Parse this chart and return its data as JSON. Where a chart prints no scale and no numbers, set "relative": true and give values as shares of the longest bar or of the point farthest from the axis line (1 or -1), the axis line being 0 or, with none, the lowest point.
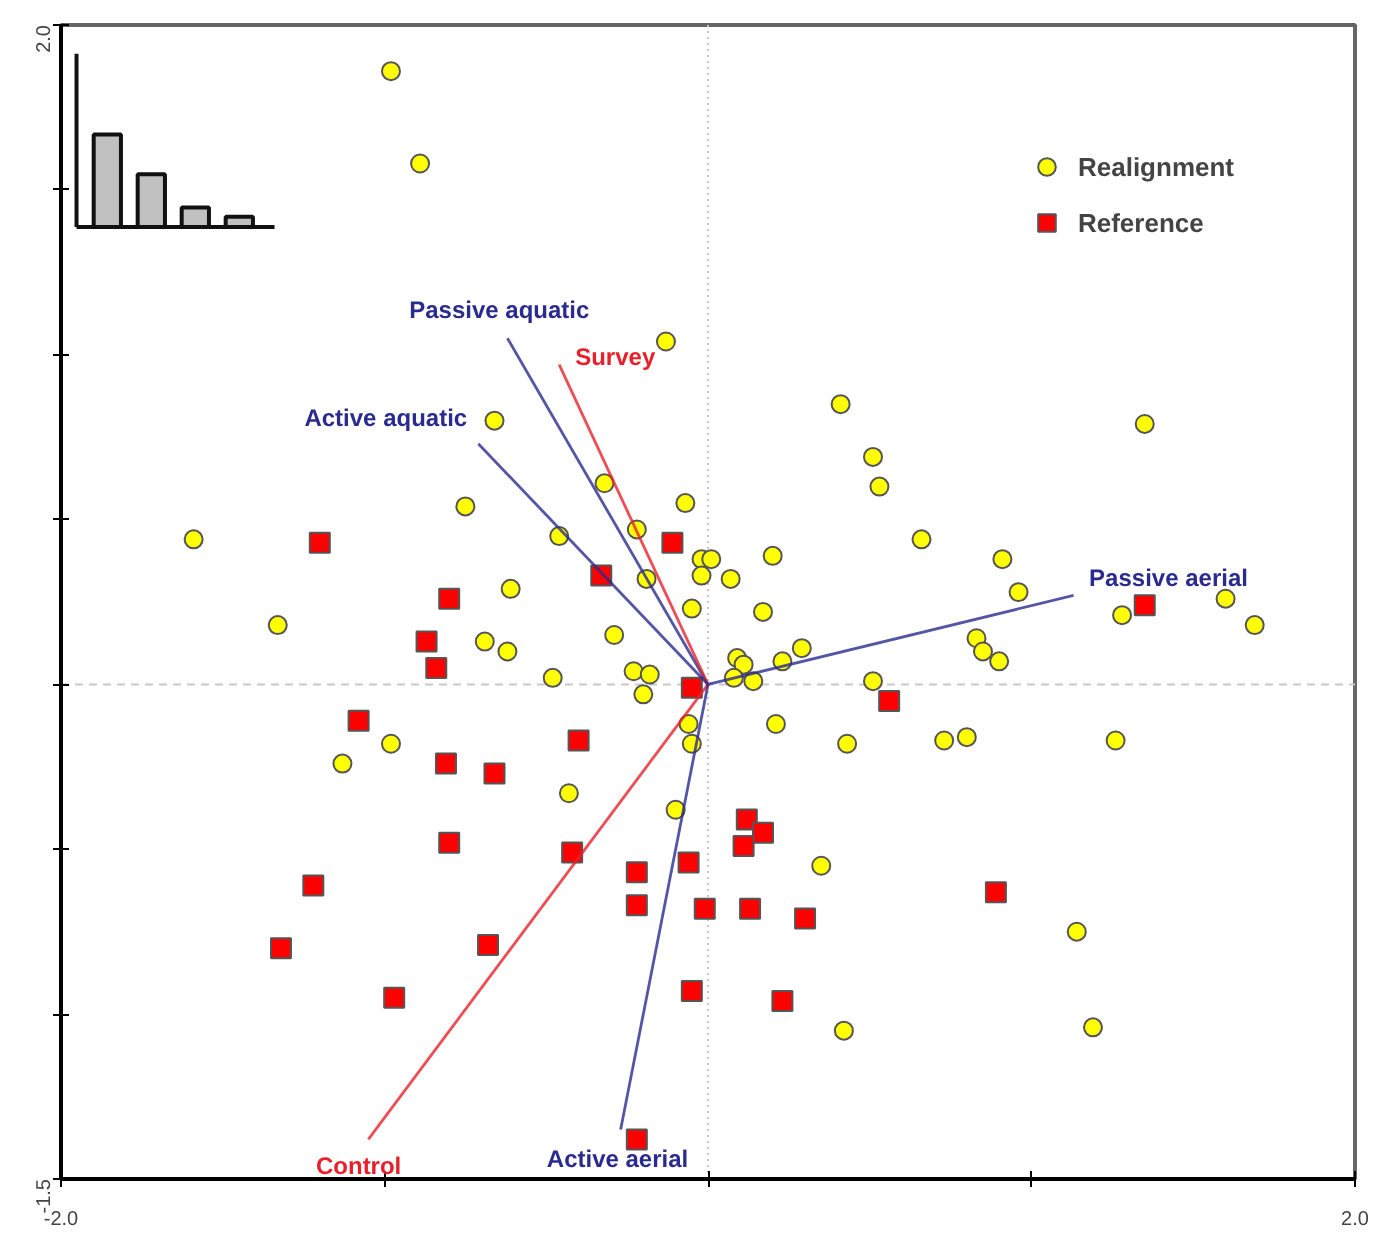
{
  "chart_data": [
    {
      "type": "scatter",
      "xlim": [
        -2.0,
        2.0
      ],
      "ylim": [
        -1.5,
        2.0
      ],
      "xticks": [
        {
          "value": -2.0,
          "label": "-2.0"
        },
        {
          "value": -1.0,
          "label": null
        },
        {
          "value": 0.0,
          "label": null
        },
        {
          "value": 1.0,
          "label": null
        },
        {
          "value": 2.0,
          "label": "2.0"
        }
      ],
      "yticks": [
        {
          "value": -1.5,
          "label": "-1.5"
        },
        {
          "value": -1.0,
          "label": null
        },
        {
          "value": -0.5,
          "label": null
        },
        {
          "value": 0.0,
          "label": null
        },
        {
          "value": 0.5,
          "label": null
        },
        {
          "value": 1.0,
          "label": null
        },
        {
          "value": 1.5,
          "label": null
        },
        {
          "value": 2.0,
          "label": "2.0"
        }
      ],
      "grid": false,
      "legend": "top right",
      "ref_lines": [
        {
          "axis": "x",
          "value": 0,
          "color": "#c8c8c8",
          "line_style": "dotted"
        },
        {
          "axis": "y",
          "value": 0,
          "color": "#c8c8c8",
          "line_style": "dashed"
        }
      ],
      "series": [
        {
          "name": "Realignment",
          "type": "scatter",
          "marker": "circle",
          "color": "#ffff00",
          "x": [
            -0.98,
            -0.89,
            -0.13,
            -0.66,
            -1.59,
            -0.75,
            -0.32,
            -0.22,
            -0.07,
            -0.46,
            -0.02,
            0.01,
            -0.02,
            -0.61,
            -1.33,
            -0.69,
            -0.62,
            -0.29,
            -0.19,
            -0.05,
            0.07,
            0.2,
            0.17,
            -0.48,
            -0.23,
            -0.18,
            -0.2,
            -0.06,
            -0.05,
            -1.13,
            -0.98,
            -0.43,
            -0.1,
            0.35,
            0.42,
            0.41,
            0.51,
            0.53,
            0.66,
            0.91,
            0.96,
            1.35,
            1.6,
            1.69,
            1.28,
            0.83,
            0.85,
            0.9,
            0.51,
            0.23,
            0.29,
            0.09,
            0.11,
            0.08,
            0.14,
            0.21,
            0.43,
            0.73,
            0.8,
            1.26,
            1.14,
            1.19
          ],
          "values": [
            1.86,
            1.58,
            1.04,
            0.8,
            0.44,
            0.54,
            0.61,
            0.47,
            0.55,
            0.45,
            0.38,
            0.38,
            0.33,
            0.29,
            0.18,
            0.13,
            0.1,
            0.15,
            0.32,
            0.23,
            0.32,
            0.39,
            0.22,
            0.02,
            0.04,
            0.03,
            -0.03,
            -0.12,
            -0.18,
            -0.24,
            -0.18,
            -0.33,
            -0.38,
            -0.55,
            -1.05,
            0.85,
            0.69,
            0.6,
            0.44,
            0.38,
            0.28,
            0.79,
            0.26,
            0.18,
            0.21,
            0.14,
            0.1,
            0.07,
            0.01,
            0.07,
            0.11,
            0.08,
            0.06,
            0.02,
            0.01,
            -0.12,
            -0.18,
            -0.17,
            -0.16,
            -0.17,
            -0.75,
            -1.04
          ]
        },
        {
          "name": "Reference",
          "type": "scatter",
          "marker": "square",
          "color": "#ff0000",
          "x": [
            -1.2,
            -0.11,
            -0.33,
            -0.8,
            -0.87,
            -0.84,
            -0.05,
            -1.08,
            -0.4,
            -0.81,
            -0.66,
            -0.8,
            -0.42,
            -0.22,
            -0.06,
            -1.22,
            -0.22,
            -0.01,
            -1.32,
            -0.68,
            -0.05,
            -0.97,
            -0.22,
            1.35,
            0.56,
            0.12,
            0.17,
            0.11,
            0.13,
            0.3,
            0.89,
            0.23
          ],
          "values": [
            0.43,
            0.43,
            0.33,
            0.26,
            0.13,
            0.05,
            -0.01,
            -0.11,
            -0.17,
            -0.24,
            -0.27,
            -0.48,
            -0.51,
            -0.57,
            -0.54,
            -0.61,
            -0.67,
            -0.68,
            -0.8,
            -0.79,
            -0.93,
            -0.95,
            -1.38,
            0.24,
            -0.05,
            -0.41,
            -0.45,
            -0.49,
            -0.68,
            -0.71,
            -0.63,
            -0.96
          ]
        },
        {
          "name": "Passive aquatic",
          "type": "line",
          "color": "#2b2b8f",
          "x": [
            0,
            -0.62
          ],
          "values": [
            0,
            1.05
          ]
        },
        {
          "name": "Survey",
          "type": "line",
          "color": "#e8202a",
          "x": [
            0,
            -0.46
          ],
          "values": [
            0,
            0.97
          ]
        },
        {
          "name": "Active aquatic",
          "type": "line",
          "color": "#2b2b8f",
          "x": [
            0,
            -0.71
          ],
          "values": [
            0,
            0.73
          ]
        },
        {
          "name": "Passive aerial",
          "type": "line",
          "color": "#2b2b8f",
          "x": [
            0,
            1.13
          ],
          "values": [
            0,
            0.27
          ]
        },
        {
          "name": "Control",
          "type": "line",
          "color": "#e8202a",
          "x": [
            0,
            -1.05
          ],
          "values": [
            0,
            -1.38
          ]
        },
        {
          "name": "Active aerial",
          "type": "line",
          "color": "#2b2b8f",
          "x": [
            0,
            -0.27
          ],
          "values": [
            0,
            -1.35
          ]
        }
      ]
    },
    {
      "type": "bar",
      "relative": true,
      "categories": [
        null,
        null,
        null,
        null
      ],
      "values": [
        1,
        0.57,
        0.21,
        0.11
      ],
      "color": "#c0c0c0"
    }
  ]
}
